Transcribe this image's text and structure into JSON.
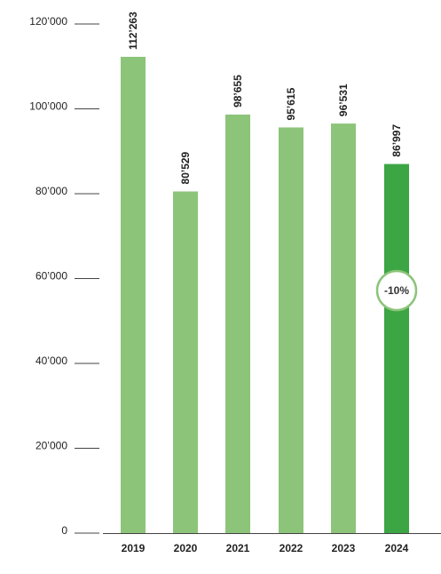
{
  "chart_data": {
    "type": "bar",
    "categories": [
      "2019",
      "2020",
      "2021",
      "2022",
      "2023",
      "2024"
    ],
    "values": [
      112263,
      80529,
      98655,
      95615,
      96531,
      86997
    ],
    "value_labels": [
      "112’263",
      "80’529",
      "98’655",
      "95’615",
      "96’531",
      "86’997"
    ],
    "yticks": [
      0,
      20000,
      40000,
      60000,
      80000,
      100000,
      120000
    ],
    "ytick_labels": [
      "0",
      "20’000",
      "40’000",
      "60’000",
      "80’000",
      "100’000",
      "120’000"
    ],
    "ylim": [
      0,
      120000
    ],
    "title": "",
    "xlabel": "",
    "ylabel": "",
    "grid": false,
    "highlight_index": 5,
    "badge": {
      "text": "-10%",
      "bar_index": 5
    },
    "colors": {
      "bar": "#8cc47a",
      "highlight_bar": "#3ca544",
      "badge_border": "#8cc47a",
      "axis": "#444444",
      "tick_line": "#444444"
    }
  }
}
